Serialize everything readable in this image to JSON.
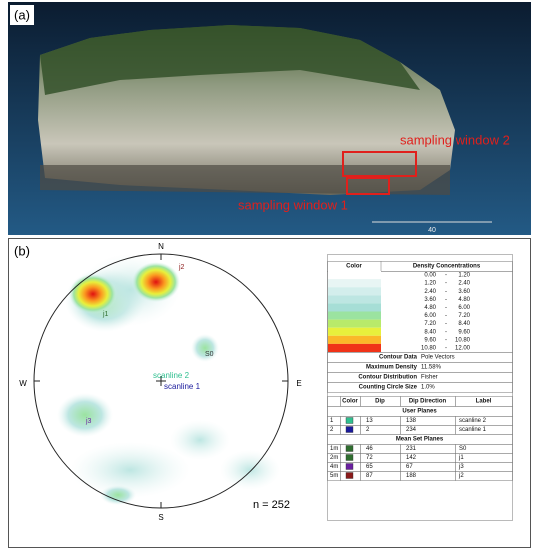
{
  "panel_a": {
    "label": "(a)",
    "annotations": [
      "sampling window 2",
      "sampling window 1"
    ],
    "scale_label": "40"
  },
  "panel_b": {
    "label": "(b)",
    "directions": [
      "N",
      "E",
      "S",
      "W"
    ],
    "poles": [
      "j2",
      "j1",
      "S0",
      "j3",
      "scanline 2",
      "scanline 1"
    ],
    "count": "n = 252"
  },
  "legend": {
    "headers": [
      "Color",
      "Density Concentrations"
    ],
    "separator": "-",
    "ranges": [
      {
        "from": "0.00",
        "to": "1.20",
        "color": "#ffffff"
      },
      {
        "from": "1.20",
        "to": "2.40",
        "color": "#e8f5f4"
      },
      {
        "from": "2.40",
        "to": "3.60",
        "color": "#d3eeec"
      },
      {
        "from": "3.60",
        "to": "4.80",
        "color": "#bde6e2"
      },
      {
        "from": "4.80",
        "to": "6.00",
        "color": "#a6ded6"
      },
      {
        "from": "6.00",
        "to": "7.20",
        "color": "#9be3a0"
      },
      {
        "from": "7.20",
        "to": "8.40",
        "color": "#b8ea6a"
      },
      {
        "from": "8.40",
        "to": "9.60",
        "color": "#e8f03c"
      },
      {
        "from": "9.60",
        "to": "10.80",
        "color": "#fbb829"
      },
      {
        "from": "10.80",
        "to": "12.00",
        "color": "#f03318"
      }
    ],
    "info": [
      [
        "Contour Data",
        "Pole Vectors"
      ],
      [
        "Maximum Density",
        "11.58%"
      ],
      [
        "Contour Distribution",
        "Fisher"
      ],
      [
        "Counting Circle Size",
        "1.0%"
      ]
    ]
  },
  "planes": {
    "headers": [
      "Color",
      "Dip",
      "Dip Direction",
      "Label"
    ],
    "groups": [
      {
        "title": "User Planes",
        "rows": [
          {
            "id": "1",
            "color": "#2fbf8f",
            "dip": "13",
            "dip_direction": "138",
            "label": "scanline 2"
          },
          {
            "id": "2",
            "color": "#1a1a9c",
            "dip": "2",
            "dip_direction": "234",
            "label": "scanline 1"
          }
        ]
      },
      {
        "title": "Mean Set Planes",
        "rows": [
          {
            "id": "1m",
            "color": "#2f6e2f",
            "dip": "46",
            "dip_direction": "231",
            "label": "S0"
          },
          {
            "id": "2m",
            "color": "#2f6e2f",
            "dip": "72",
            "dip_direction": "142",
            "label": "j1"
          },
          {
            "id": "4m",
            "color": "#6a1fa0",
            "dip": "65",
            "dip_direction": "67",
            "label": "j3"
          },
          {
            "id": "5m",
            "color": "#8a1a1a",
            "dip": "87",
            "dip_direction": "188",
            "label": "j2"
          }
        ]
      }
    ]
  }
}
